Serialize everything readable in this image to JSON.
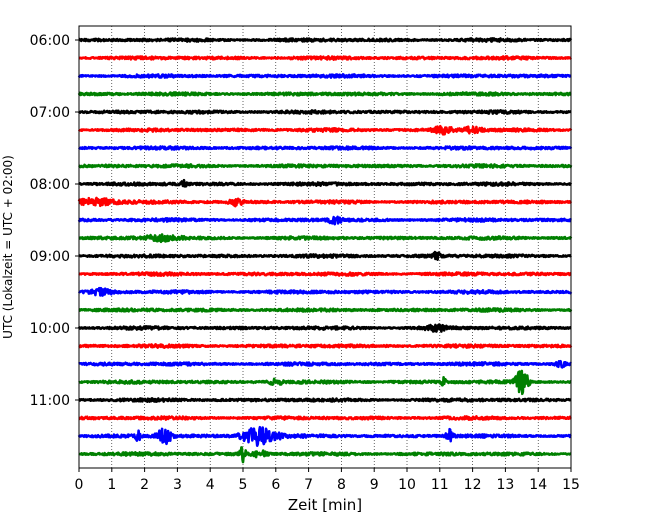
{
  "chart_data": {
    "type": "line",
    "title": "",
    "xlabel": "Zeit  [min]",
    "ylabel": "UTC (Lokalzeit = UTC + 02:00)",
    "xlim": [
      0,
      15
    ],
    "x_ticks": [
      0,
      1,
      2,
      3,
      4,
      5,
      6,
      7,
      8,
      9,
      10,
      11,
      12,
      13,
      14,
      15
    ],
    "y_tick_labels": [
      "06:00",
      "07:00",
      "08:00",
      "09:00",
      "10:00",
      "11:00"
    ],
    "grid": "vertical dotted",
    "colors": [
      "#000000",
      "#ff0000",
      "#0000ff",
      "#008000"
    ],
    "trace_minutes_per_line": 15,
    "traces": [
      {
        "start": "06:00",
        "color": "#000000",
        "events": []
      },
      {
        "start": "06:15",
        "color": "#ff0000",
        "events": []
      },
      {
        "start": "06:30",
        "color": "#0000ff",
        "events": []
      },
      {
        "start": "06:45",
        "color": "#008000",
        "events": []
      },
      {
        "start": "07:00",
        "color": "#000000",
        "events": []
      },
      {
        "start": "07:15",
        "color": "#ff0000",
        "events": [
          {
            "t": 11.1,
            "amp": 0.35,
            "dur": 0.6
          },
          {
            "t": 12.0,
            "amp": 0.3,
            "dur": 0.6
          }
        ]
      },
      {
        "start": "07:30",
        "color": "#0000ff",
        "events": []
      },
      {
        "start": "07:45",
        "color": "#008000",
        "events": []
      },
      {
        "start": "08:00",
        "color": "#000000",
        "events": [
          {
            "t": 3.2,
            "amp": 0.35,
            "dur": 0.2
          }
        ]
      },
      {
        "start": "08:15",
        "color": "#ff0000",
        "events": [
          {
            "t": 0.5,
            "amp": 0.4,
            "dur": 1.2
          },
          {
            "t": 4.8,
            "amp": 0.35,
            "dur": 0.4
          }
        ]
      },
      {
        "start": "08:30",
        "color": "#0000ff",
        "events": [
          {
            "t": 7.8,
            "amp": 0.35,
            "dur": 0.4
          }
        ]
      },
      {
        "start": "08:45",
        "color": "#008000",
        "events": [
          {
            "t": 2.5,
            "amp": 0.3,
            "dur": 1.0
          }
        ]
      },
      {
        "start": "09:00",
        "color": "#000000",
        "events": [
          {
            "t": 10.9,
            "amp": 0.4,
            "dur": 0.2
          }
        ]
      },
      {
        "start": "09:15",
        "color": "#ff0000",
        "events": []
      },
      {
        "start": "09:30",
        "color": "#0000ff",
        "events": [
          {
            "t": 0.7,
            "amp": 0.35,
            "dur": 0.6
          }
        ]
      },
      {
        "start": "09:45",
        "color": "#008000",
        "events": []
      },
      {
        "start": "10:00",
        "color": "#000000",
        "events": [
          {
            "t": 10.9,
            "amp": 0.3,
            "dur": 0.6
          }
        ]
      },
      {
        "start": "10:15",
        "color": "#ff0000",
        "events": []
      },
      {
        "start": "10:30",
        "color": "#0000ff",
        "events": [
          {
            "t": 14.7,
            "amp": 0.3,
            "dur": 0.3
          }
        ]
      },
      {
        "start": "10:45",
        "color": "#008000",
        "events": [
          {
            "t": 6.0,
            "amp": 0.3,
            "dur": 0.4
          },
          {
            "t": 11.1,
            "amp": 0.5,
            "dur": 0.15
          },
          {
            "t": 13.5,
            "amp": 1.5,
            "dur": 0.35
          }
        ]
      },
      {
        "start": "11:00",
        "color": "#000000",
        "events": []
      },
      {
        "start": "11:15",
        "color": "#ff0000",
        "events": []
      },
      {
        "start": "11:30",
        "color": "#0000ff",
        "events": [
          {
            "t": 1.8,
            "amp": 0.5,
            "dur": 0.15
          },
          {
            "t": 2.6,
            "amp": 0.9,
            "dur": 0.4
          },
          {
            "t": 5.5,
            "amp": 1.1,
            "dur": 1.0
          },
          {
            "t": 11.3,
            "amp": 0.7,
            "dur": 0.2
          }
        ]
      },
      {
        "start": "11:45",
        "color": "#008000",
        "events": [
          {
            "t": 5.0,
            "amp": 0.9,
            "dur": 0.2
          },
          {
            "t": 5.5,
            "amp": 0.4,
            "dur": 0.4
          }
        ]
      }
    ]
  }
}
